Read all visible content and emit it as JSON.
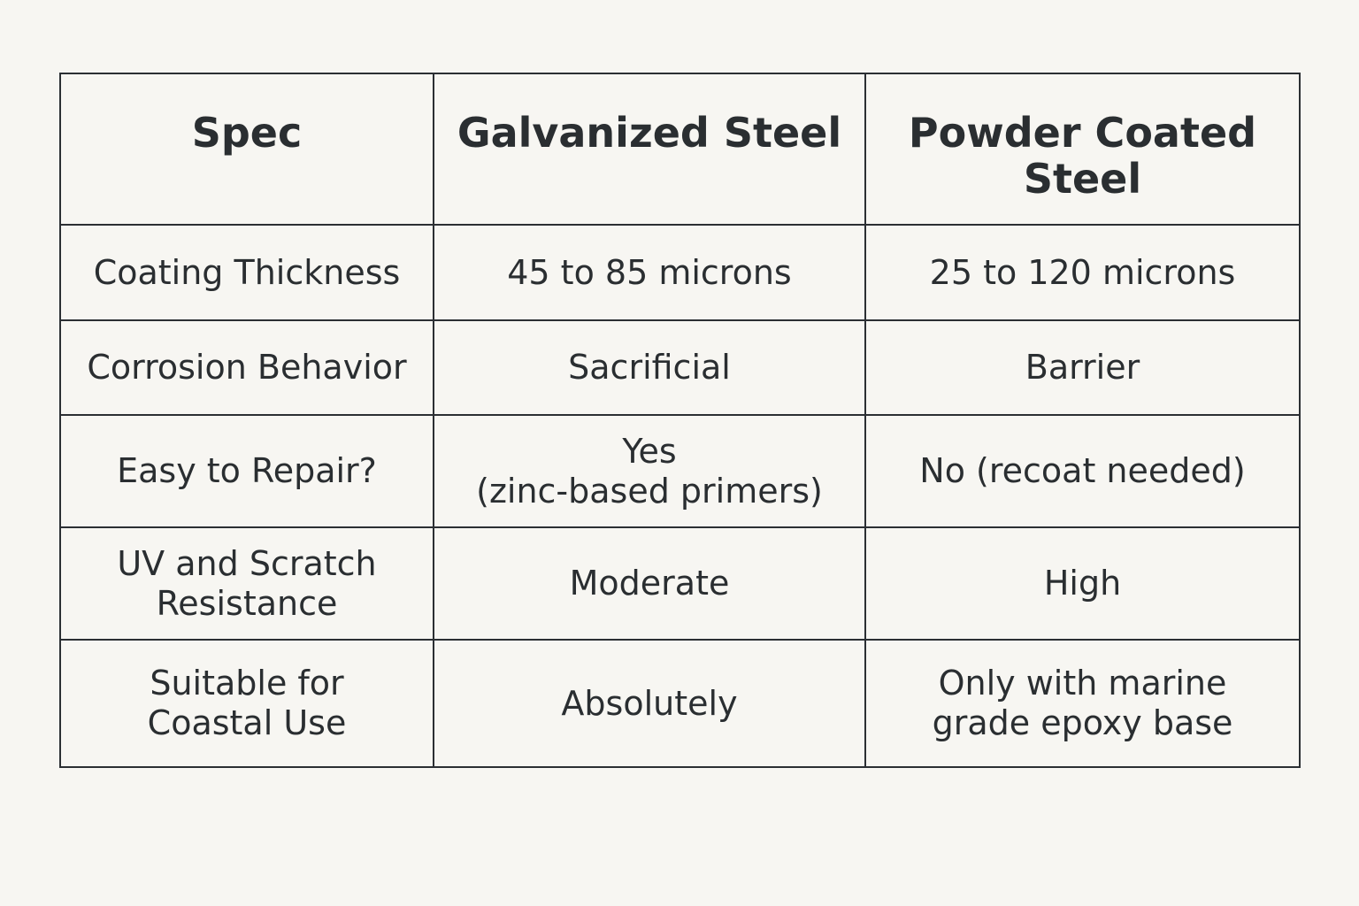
{
  "table": {
    "headers": [
      "Spec",
      "Galvanized Steel",
      "Powder Coated\nSteel"
    ],
    "rows": [
      [
        "Coating Thickness",
        "45 to 85 microns",
        "25 to 120 microns"
      ],
      [
        "Corrosion Behavior",
        "Sacrificial",
        "Barrier"
      ],
      [
        "Easy to Repair?",
        "Yes\n(zinc-based primers)",
        "No (recoat needed)"
      ],
      [
        "UV and Scratch\nResistance",
        "Moderate",
        "High"
      ],
      [
        "Suitable for\nCoastal Use",
        "Absolutely",
        "Only with marine\ngrade epoxy base"
      ]
    ]
  }
}
